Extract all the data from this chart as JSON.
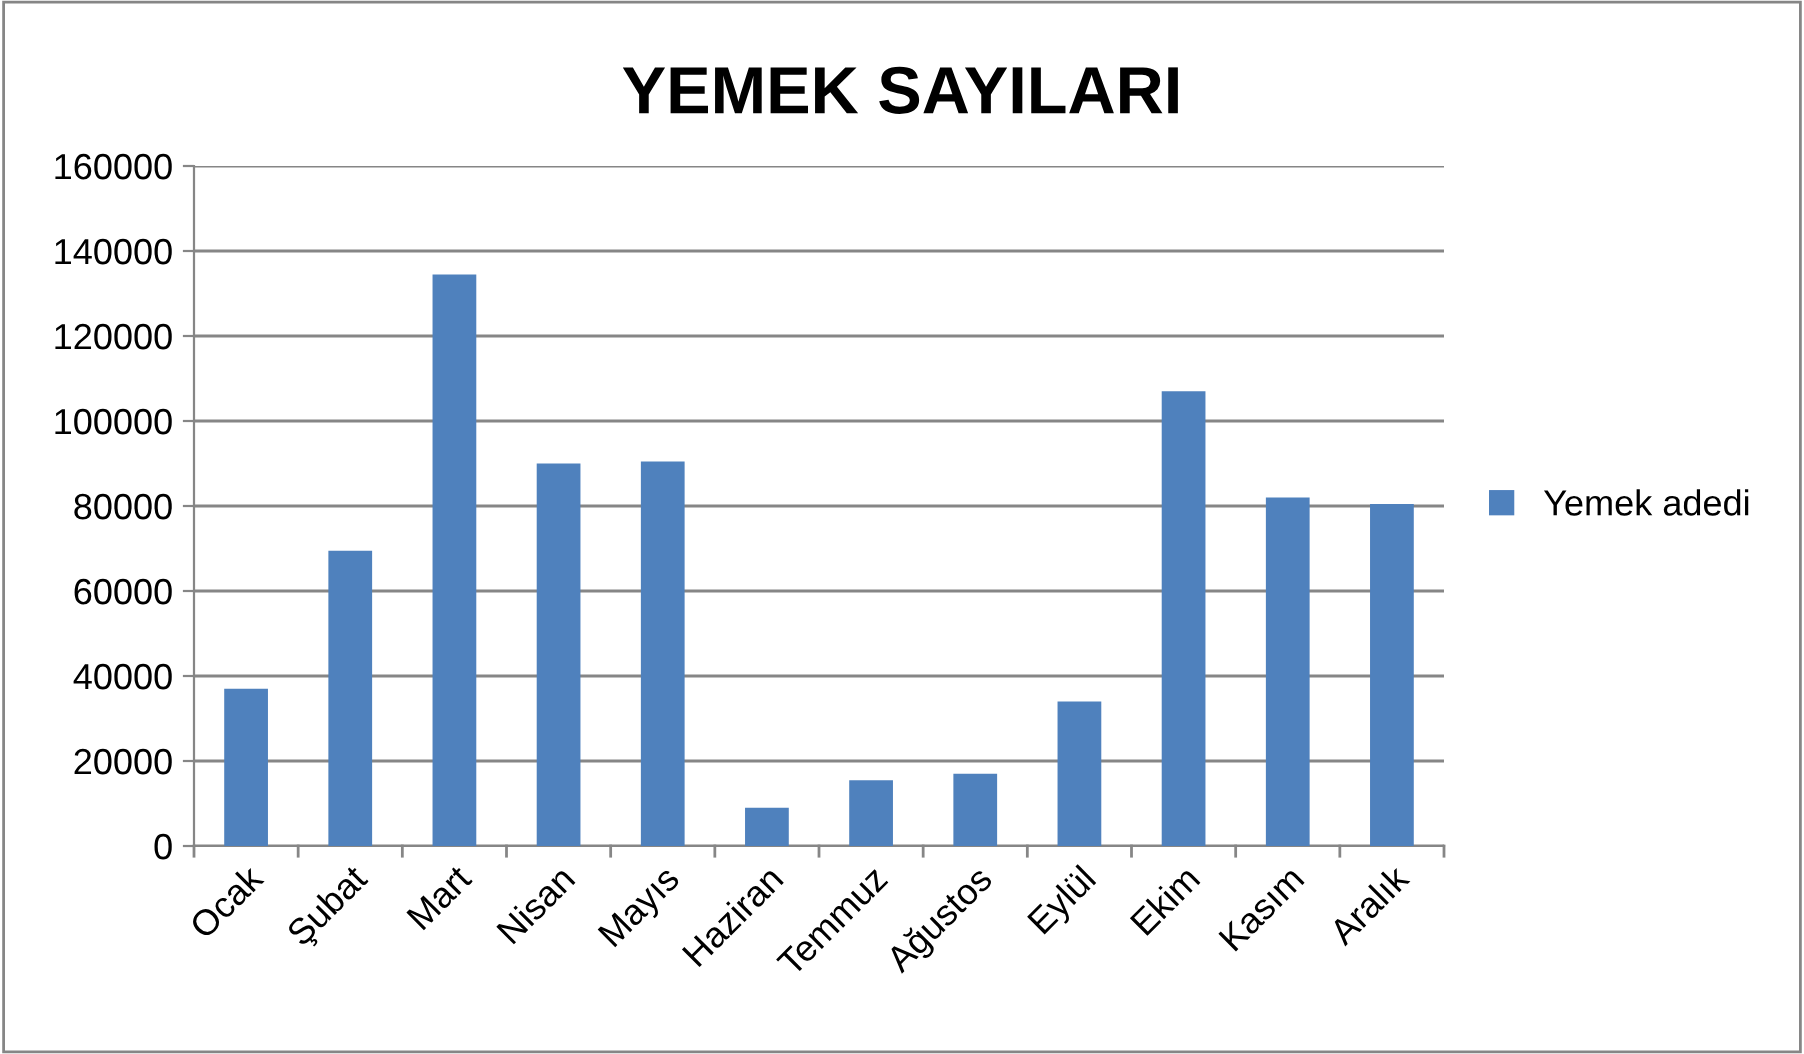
{
  "chart_data": {
    "type": "bar",
    "title": "YEMEK SAYILARI",
    "categories": [
      "Ocak",
      "Şubat",
      "Mart",
      "Nisan",
      "Mayıs",
      "Haziran",
      "Temmuz",
      "Ağustos",
      "Eylül",
      "Ekim",
      "Kasım",
      "Aralık"
    ],
    "series": [
      {
        "name": "Yemek adedi",
        "color": "#4f81bd",
        "values": [
          37000,
          69500,
          134500,
          90000,
          90500,
          9000,
          15500,
          17000,
          34000,
          107000,
          82000,
          80500
        ]
      }
    ],
    "ylim": [
      0,
      160000
    ],
    "yticks": [
      0,
      20000,
      40000,
      60000,
      80000,
      100000,
      120000,
      140000,
      160000
    ],
    "grid": "y",
    "legend": "right"
  }
}
